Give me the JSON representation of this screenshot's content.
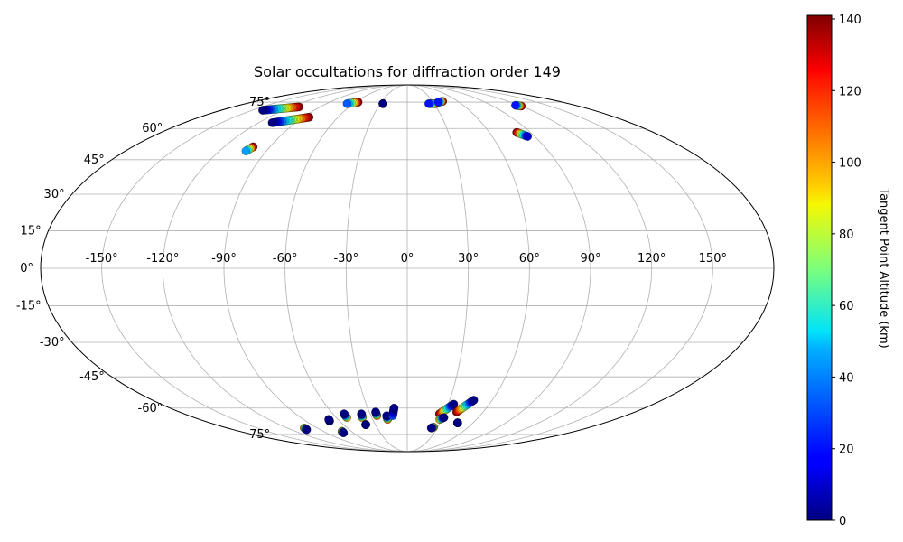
{
  "chart_data": {
    "type": "scatter",
    "projection": "mollweide",
    "title": "Solar occultations for diffraction order 149",
    "grid": true,
    "lon_ticks": [
      {
        "value": -150,
        "label": "-150°"
      },
      {
        "value": -120,
        "label": "-120°"
      },
      {
        "value": -90,
        "label": "-90°"
      },
      {
        "value": -60,
        "label": "-60°"
      },
      {
        "value": -30,
        "label": "-30°"
      },
      {
        "value": 0,
        "label": "0°"
      },
      {
        "value": 30,
        "label": "30°"
      },
      {
        "value": 60,
        "label": "60°"
      },
      {
        "value": 90,
        "label": "90°"
      },
      {
        "value": 120,
        "label": "120°"
      },
      {
        "value": 150,
        "label": "150°"
      }
    ],
    "lat_ticks": [
      {
        "value": 75,
        "label": "75°"
      },
      {
        "value": 60,
        "label": "60°"
      },
      {
        "value": 45,
        "label": "45°"
      },
      {
        "value": 30,
        "label": "30°"
      },
      {
        "value": 15,
        "label": "15°"
      },
      {
        "value": 0,
        "label": "0°"
      },
      {
        "value": -15,
        "label": "-15°"
      },
      {
        "value": -30,
        "label": "-30°"
      },
      {
        "value": -45,
        "label": "-45°"
      },
      {
        "value": -60,
        "label": "-60°"
      },
      {
        "value": -75,
        "label": "-75°"
      }
    ],
    "colorbar": {
      "label": "Tangent Point Altitude (km)",
      "colormap": "jet",
      "range": [
        0,
        141
      ],
      "ticks": [
        {
          "value": 0,
          "label": "0"
        },
        {
          "value": 20,
          "label": "20"
        },
        {
          "value": 40,
          "label": "40"
        },
        {
          "value": 60,
          "label": "60"
        },
        {
          "value": 80,
          "label": "80"
        },
        {
          "value": 100,
          "label": "100"
        },
        {
          "value": 120,
          "label": "120"
        },
        {
          "value": 140,
          "label": "140"
        }
      ]
    },
    "tracks": [
      {
        "lon0": -140,
        "lat0": 70,
        "lon1": -112,
        "lat1": 72,
        "alt0": 0,
        "alt1": 140
      },
      {
        "lon0": -109,
        "lat0": 63,
        "lon1": -85,
        "lat1": 66,
        "alt0": 0,
        "alt1": 140
      },
      {
        "lon0": -103,
        "lat0": 49,
        "lon1": -101,
        "lat1": 51,
        "alt0": 40,
        "alt1": 140
      },
      {
        "lon0": -67,
        "lat0": 74,
        "lon1": -57,
        "lat1": 75,
        "alt0": 30,
        "alt1": 140
      },
      {
        "lon0": -27,
        "lat0": 74,
        "lon1": -27,
        "lat1": 74,
        "alt0": 0,
        "alt1": 140
      },
      {
        "lon0": 24,
        "lat0": 74,
        "lon1": 32,
        "lat1": 74,
        "alt0": 20,
        "alt1": 140
      },
      {
        "lon0": 36,
        "lat0": 75,
        "lon1": 42,
        "lat1": 75.5,
        "alt0": 20,
        "alt1": 140
      },
      {
        "lon0": 116,
        "lat0": 73,
        "lon1": 120,
        "lat1": 72.5,
        "alt0": 20,
        "alt1": 140
      },
      {
        "lon0": 80,
        "lat0": 58,
        "lon1": 85,
        "lat1": 56,
        "alt0": 140,
        "alt1": 10
      },
      {
        "lon0": -103,
        "lat0": -71,
        "lon1": -104,
        "lat1": -72,
        "alt0": 110,
        "alt1": 0
      },
      {
        "lon0": -68,
        "lat0": -66,
        "lon1": -69,
        "lat1": -67,
        "alt0": 0,
        "alt1": 20
      },
      {
        "lon0": -70,
        "lat0": -73,
        "lon1": -71,
        "lat1": -74,
        "alt0": 110,
        "alt1": 0
      },
      {
        "lon0": -51,
        "lat0": -63,
        "lon1": -51,
        "lat1": -65,
        "alt0": 0,
        "alt1": 100
      },
      {
        "lon0": -37,
        "lat0": -63,
        "lon1": -38,
        "lat1": -65,
        "alt0": 0,
        "alt1": 100
      },
      {
        "lon0": -39,
        "lat0": -69,
        "lon1": -39,
        "lat1": -69,
        "alt0": 0,
        "alt1": 0
      },
      {
        "lon0": -25,
        "lat0": -62,
        "lon1": -25,
        "lat1": -64,
        "alt0": 0,
        "alt1": 110
      },
      {
        "lon0": -17,
        "lat0": -64,
        "lon1": -17,
        "lat1": -66,
        "alt0": 0,
        "alt1": 110
      },
      {
        "lon0": -10,
        "lat0": -60,
        "lon1": -12,
        "lat1": -64,
        "alt0": 0,
        "alt1": 30
      },
      {
        "lon0": 26,
        "lat0": -63,
        "lon1": 34,
        "lat1": -58,
        "alt0": 140,
        "alt1": 0
      },
      {
        "lon0": 39,
        "lat0": -62,
        "lon1": 47,
        "lat1": -56,
        "alt0": 140,
        "alt1": 0
      },
      {
        "lon0": 28,
        "lat0": -66,
        "lon1": 31,
        "lat1": -65,
        "alt0": 100,
        "alt1": 0
      },
      {
        "lon0": 24,
        "lat0": -71,
        "lon1": 26,
        "lat1": -70.5,
        "alt0": 0,
        "alt1": 110
      },
      {
        "lon0": 46,
        "lat0": -68,
        "lon1": 46,
        "lat1": -68,
        "alt0": 0,
        "alt1": 0
      }
    ]
  }
}
